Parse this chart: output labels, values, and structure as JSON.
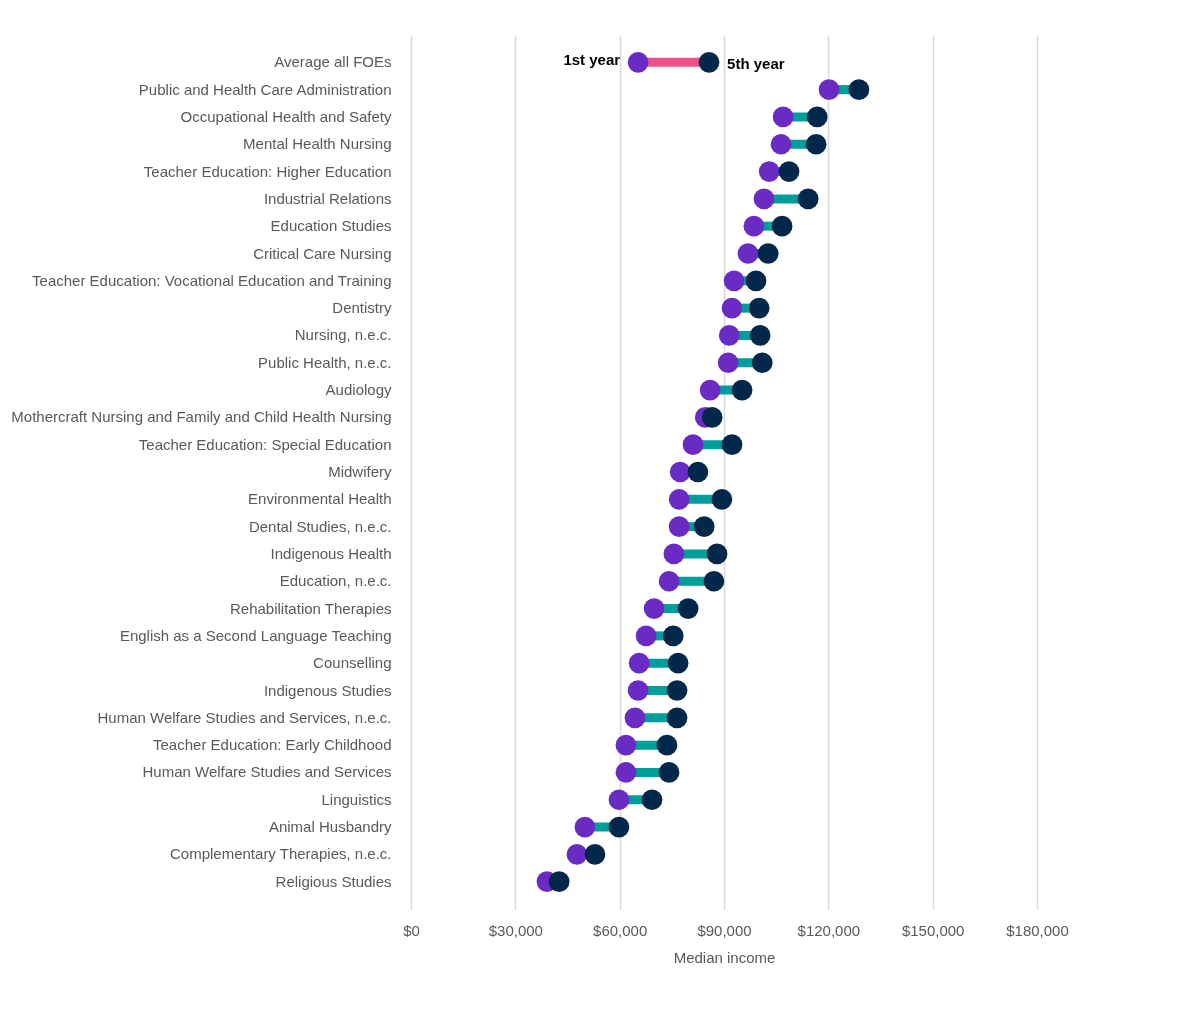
{
  "chart_data": {
    "type": "scatter",
    "orientation": "horizontal",
    "xlabel": "Median income",
    "categories": [
      "Average all FOEs",
      "Public and Health Care Administration",
      "Occupational Health and Safety",
      "Mental Health Nursing",
      "Teacher Education: Higher Education",
      "Industrial Relations",
      "Education Studies",
      "Critical Care Nursing",
      "Teacher Education: Vocational Education and Training",
      "Dentistry",
      "Nursing, n.e.c.",
      "Public Health, n.e.c.",
      "Audiology",
      "Mothercraft Nursing and Family and Child Health Nursing",
      "Teacher Education: Special Education",
      "Midwifery",
      "Environmental Health",
      "Dental Studies, n.e.c.",
      "Indigenous Health",
      "Education, n.e.c.",
      "Rehabilitation Therapies",
      "English as a Second Language Teaching",
      "Counselling",
      "Indigenous Studies",
      "Human Welfare Studies and Services, n.e.c.",
      "Teacher Education: Early Childhood",
      "Human Welfare Studies and Services",
      "Linguistics",
      "Animal Husbandry",
      "Complementary Therapies, n.e.c.",
      "Religious Studies"
    ],
    "series": [
      {
        "name": "1st year",
        "color": "#6a2bc4",
        "values": [
          65300,
          120200,
          107000,
          106400,
          103000,
          101500,
          98600,
          96900,
          92900,
          92300,
          91500,
          91200,
          86000,
          84600,
          81100,
          77400,
          77100,
          77100,
          75600,
          74200,
          69900,
          67600,
          65600,
          65300,
          64400,
          61800,
          61800,
          59800,
          50000,
          47700,
          39100
        ]
      },
      {
        "name": "5th year",
        "color": "#01284a",
        "values": [
          85700,
          128800,
          116800,
          116500,
          108700,
          114200,
          106700,
          102700,
          99200,
          100100,
          100400,
          101000,
          95200,
          86600,
          92300,
          82500,
          89400,
          84300,
          88000,
          87100,
          79700,
          75400,
          76800,
          76500,
          76500,
          73600,
          74200,
          69300,
          59800,
          52900,
          42600
        ]
      }
    ],
    "colors": [
      "#ec5189",
      "#009e9a",
      "#009e9a",
      "#009e9a",
      "#009e9a",
      "#009e9a",
      "#009e9a",
      "#009e9a",
      "#009e9a",
      "#009e9a",
      "#009e9a",
      "#009e9a",
      "#009e9a",
      "#009e9a",
      "#009e9a",
      "#009e9a",
      "#009e9a",
      "#009e9a",
      "#009e9a",
      "#009e9a",
      "#009e9a",
      "#009e9a",
      "#009e9a",
      "#009e9a",
      "#009e9a",
      "#009e9a",
      "#009e9a",
      "#009e9a",
      "#009e9a",
      "#009e9a",
      "#009e9a"
    ],
    "xlim": [
      0,
      180000
    ],
    "xticks": [
      {
        "value": 0,
        "label": "$0"
      },
      {
        "value": 30000,
        "label": "$30,000"
      },
      {
        "value": 60000,
        "label": "$60,000"
      },
      {
        "value": 90000,
        "label": "$90,000"
      },
      {
        "value": 120000,
        "label": "$120,000"
      },
      {
        "value": 150000,
        "label": "$150,000"
      },
      {
        "value": 180000,
        "label": "$180,000"
      }
    ],
    "grid": "x"
  }
}
